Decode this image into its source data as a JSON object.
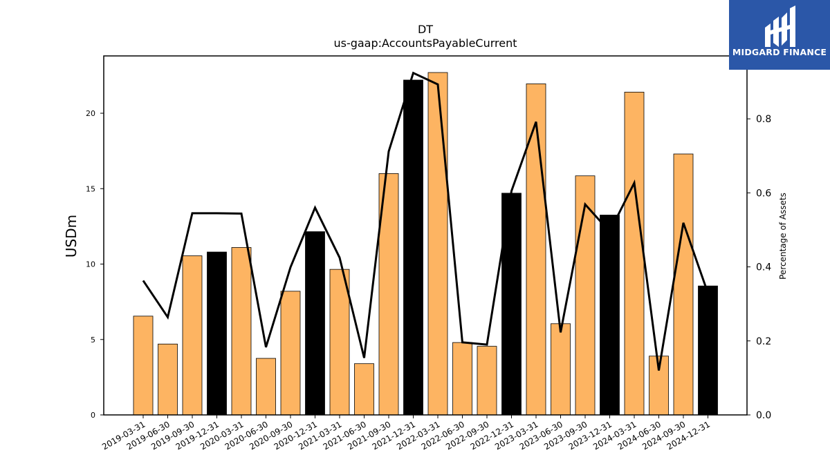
{
  "chart_data": {
    "type": "bar",
    "title": "DT",
    "subtitle": "us-gaap:AccountsPayableCurrent",
    "ylabel": "USDm",
    "y2label": "Percentage of Assets",
    "categories": [
      "2019-03-31",
      "2019-06-30",
      "2019-09-30",
      "2019-12-31",
      "2020-03-31",
      "2020-06-30",
      "2020-09-30",
      "2020-12-31",
      "2021-03-31",
      "2021-06-30",
      "2021-09-30",
      "2021-12-31",
      "2022-03-31",
      "2022-06-30",
      "2022-09-30",
      "2022-12-31",
      "2023-03-31",
      "2023-06-30",
      "2023-09-30",
      "2023-12-31",
      "2024-03-31",
      "2024-06-30",
      "2024-09-30",
      "2024-12-31"
    ],
    "series": [
      {
        "type": "bar",
        "axis": "left",
        "values": [
          6.55,
          4.7,
          10.55,
          10.8,
          11.1,
          3.75,
          8.2,
          12.15,
          9.65,
          3.4,
          16.0,
          22.2,
          22.7,
          4.8,
          4.55,
          14.7,
          21.95,
          6.05,
          15.85,
          13.25,
          21.4,
          3.9,
          17.3,
          8.55
        ]
      },
      {
        "type": "line",
        "axis": "right",
        "values": [
          0.363,
          0.264,
          0.545,
          0.545,
          0.544,
          0.183,
          0.399,
          0.56,
          0.425,
          0.154,
          0.712,
          0.924,
          0.893,
          0.196,
          0.19,
          0.605,
          0.792,
          0.223,
          0.569,
          0.495,
          0.627,
          0.12,
          0.519,
          0.329
        ]
      }
    ],
    "annual_bar_color": "#000000",
    "quarter_bar_color": "#fdb462",
    "line_color": "#000000",
    "ylim": [
      0,
      23.8
    ],
    "y2lim": [
      0,
      0.97
    ],
    "yticks": [
      0,
      5,
      10,
      15,
      20
    ],
    "y2ticks": [
      "0.0",
      "0.2",
      "0.4",
      "0.6",
      "0.8"
    ],
    "grid": false
  },
  "logo": {
    "text": "MIDGARD FINANCE"
  }
}
